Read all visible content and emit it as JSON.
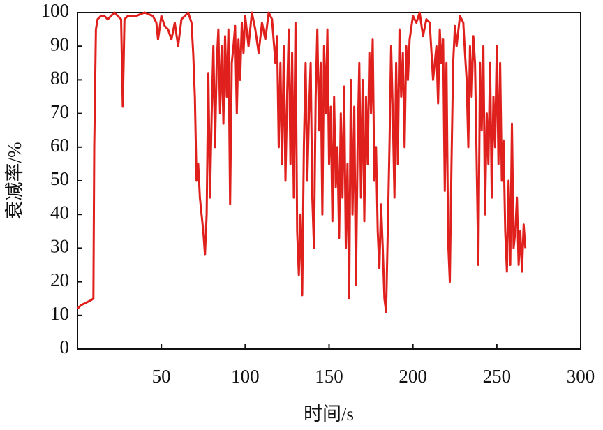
{
  "chart_data": {
    "type": "line",
    "x_label": "时间/s",
    "y_label": "衰减率/%",
    "xlim": [
      0,
      300
    ],
    "ylim": [
      0,
      100
    ],
    "xticks": [
      50,
      100,
      150,
      200,
      250,
      300
    ],
    "yticks": [
      0,
      10,
      20,
      30,
      40,
      50,
      60,
      70,
      80,
      90,
      100
    ],
    "series": [
      {
        "color": "#e0201c",
        "x": [
          0,
          2,
          4,
          6,
          8,
          9.5,
          10,
          11,
          12,
          14,
          16,
          18,
          20,
          22,
          24,
          26,
          27,
          28,
          30,
          35,
          40,
          45,
          47,
          48,
          50,
          52,
          54,
          56,
          58,
          60,
          62,
          64,
          66,
          68,
          69,
          70,
          71,
          72,
          73,
          74,
          75,
          76,
          77,
          78,
          79,
          80,
          81,
          82,
          83,
          84,
          85,
          86,
          87,
          88,
          89,
          90,
          91,
          92,
          93,
          94,
          95,
          96,
          97,
          98,
          99,
          100,
          102,
          104,
          106,
          108,
          110,
          112,
          114,
          116,
          118,
          119,
          120,
          121,
          122,
          123,
          124,
          125,
          126,
          127,
          128,
          129,
          130,
          131,
          132,
          133,
          134,
          135,
          136,
          137,
          138,
          139,
          140,
          141,
          142,
          143,
          144,
          145,
          146,
          147,
          148,
          149,
          150,
          151,
          152,
          153,
          154,
          155,
          156,
          157,
          158,
          159,
          160,
          161,
          162,
          163,
          164,
          165,
          166,
          167,
          168,
          169,
          170,
          171,
          172,
          173,
          174,
          175,
          176,
          177,
          178,
          179,
          180,
          181,
          182,
          183,
          184,
          185,
          186,
          187,
          188,
          189,
          190,
          191,
          192,
          193,
          194,
          195,
          196,
          197,
          198,
          200,
          202,
          204,
          206,
          208,
          210,
          212,
          214,
          215,
          216,
          217,
          218,
          219,
          220,
          221,
          222,
          223,
          224,
          225,
          226,
          228,
          230,
          231,
          232,
          233,
          234,
          235,
          236,
          237,
          238,
          239,
          240,
          241,
          242,
          243,
          244,
          245,
          246,
          247,
          248,
          249,
          250,
          251,
          252,
          253,
          254,
          255,
          256,
          257,
          258,
          259,
          260,
          261,
          262,
          263,
          264,
          265,
          266,
          267
        ],
        "values": [
          12,
          13,
          13.5,
          14,
          14.5,
          15,
          60,
          95,
          98,
          99,
          99,
          98,
          99,
          100,
          99,
          98,
          72,
          98,
          99,
          99,
          100,
          99,
          97,
          92,
          99,
          96,
          95,
          92,
          97,
          90,
          98,
          99,
          100,
          97,
          88,
          75,
          50,
          55,
          45,
          40,
          35,
          28,
          40,
          82,
          45,
          70,
          90,
          60,
          85,
          95,
          70,
          90,
          67,
          93,
          75,
          95,
          43,
          85,
          90,
          96,
          70,
          92,
          80,
          97,
          88,
          99,
          90,
          100,
          95,
          88,
          97,
          92,
          100,
          98,
          85,
          93,
          60,
          85,
          55,
          90,
          50,
          75,
          95,
          55,
          88,
          45,
          97,
          35,
          22,
          40,
          16,
          60,
          85,
          50,
          70,
          85,
          45,
          30,
          75,
          95,
          65,
          85,
          40,
          90,
          70,
          95,
          55,
          72,
          38,
          75,
          48,
          60,
          33,
          70,
          45,
          78,
          30,
          55,
          15,
          80,
          40,
          72,
          19,
          60,
          85,
          45,
          80,
          38,
          75,
          55,
          88,
          70,
          92,
          50,
          60,
          35,
          24,
          43,
          30,
          15,
          11,
          35,
          60,
          90,
          70,
          45,
          85,
          55,
          95,
          75,
          88,
          60,
          90,
          80,
          92,
          99,
          97,
          100,
          93,
          98,
          97,
          80,
          90,
          73,
          95,
          85,
          92,
          47,
          85,
          32,
          20,
          55,
          85,
          96,
          90,
          99,
          97,
          88,
          80,
          60,
          90,
          75,
          93,
          85,
          55,
          25,
          85,
          65,
          90,
          40,
          70,
          55,
          85,
          45,
          75,
          60,
          90,
          55,
          85,
          50,
          62,
          35,
          23,
          50,
          25,
          67,
          30,
          35,
          45,
          25,
          35,
          23,
          37,
          30
        ]
      }
    ]
  }
}
